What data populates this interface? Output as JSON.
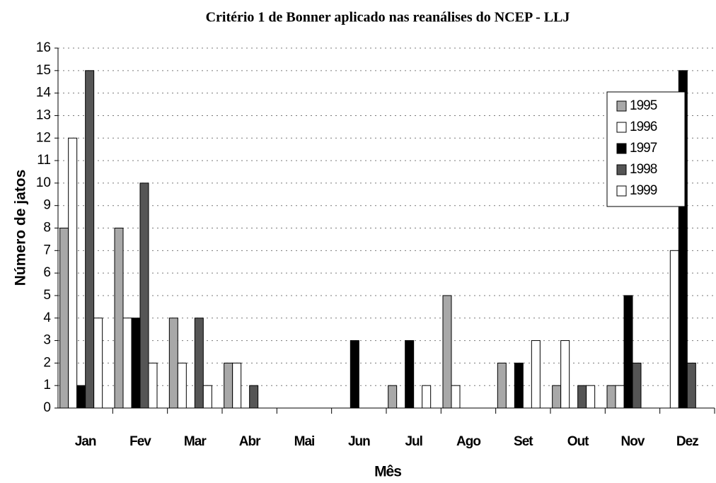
{
  "chart_data": {
    "type": "bar",
    "title": "Critério 1 de Bonner aplicado nas reanálises do NCEP - LLJ",
    "xlabel": "Mês",
    "ylabel": "Número de jatos",
    "categories": [
      "Jan",
      "Fev",
      "Mar",
      "Abr",
      "Mai",
      "Jun",
      "Jul",
      "Ago",
      "Set",
      "Out",
      "Nov",
      "Dez"
    ],
    "series": [
      {
        "name": "1995",
        "color": "#a8a8a8",
        "values": [
          8,
          8,
          4,
          2,
          0,
          0,
          1,
          5,
          2,
          1,
          1,
          0
        ]
      },
      {
        "name": "1996",
        "color": "#ffffff",
        "values": [
          12,
          4,
          2,
          2,
          0,
          0,
          0,
          1,
          0,
          3,
          1,
          7
        ]
      },
      {
        "name": "1997",
        "color": "#000000",
        "values": [
          1,
          4,
          0,
          0,
          0,
          3,
          3,
          0,
          2,
          0,
          5,
          15
        ]
      },
      {
        "name": "1998",
        "color": "#555555",
        "values": [
          15,
          10,
          4,
          1,
          0,
          0,
          0,
          0,
          0,
          1,
          2,
          2
        ]
      },
      {
        "name": "1999",
        "color": "#ffffff",
        "values": [
          4,
          2,
          1,
          0,
          0,
          0,
          1,
          0,
          3,
          1,
          0,
          0
        ]
      }
    ],
    "ylim": [
      0,
      16
    ],
    "yticks": [
      0,
      1,
      2,
      3,
      4,
      5,
      6,
      7,
      8,
      9,
      10,
      11,
      12,
      13,
      14,
      15,
      16
    ],
    "grid": true,
    "legend": "upper right"
  }
}
